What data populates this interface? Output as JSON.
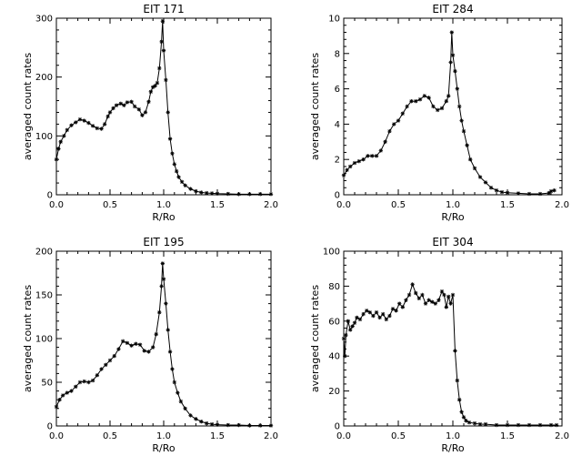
{
  "chart_data": [
    {
      "type": "line",
      "title": "EIT 171",
      "xlabel": "R/Ro",
      "ylabel": "averaged count rates",
      "xlim": [
        0,
        2
      ],
      "ylim": [
        0,
        300
      ],
      "xticks": [
        "0.0",
        "0.5",
        "1.0",
        "1.5",
        "2.0"
      ],
      "yticks": [
        "0",
        "100",
        "200",
        "300"
      ],
      "ytick_values": [
        0,
        100,
        200,
        300
      ],
      "marker": "asterisk",
      "x": [
        0.0,
        0.02,
        0.04,
        0.07,
        0.1,
        0.14,
        0.18,
        0.22,
        0.26,
        0.3,
        0.34,
        0.38,
        0.42,
        0.45,
        0.48,
        0.5,
        0.53,
        0.56,
        0.6,
        0.63,
        0.66,
        0.7,
        0.73,
        0.77,
        0.8,
        0.83,
        0.86,
        0.88,
        0.9,
        0.92,
        0.94,
        0.96,
        0.98,
        0.99,
        1.0,
        1.02,
        1.04,
        1.06,
        1.08,
        1.1,
        1.12,
        1.14,
        1.17,
        1.2,
        1.25,
        1.3,
        1.35,
        1.4,
        1.45,
        1.5,
        1.6,
        1.7,
        1.8,
        1.9,
        2.0
      ],
      "y": [
        60,
        78,
        90,
        100,
        110,
        118,
        123,
        128,
        126,
        122,
        117,
        113,
        112,
        120,
        133,
        140,
        147,
        152,
        155,
        152,
        157,
        158,
        150,
        145,
        135,
        140,
        158,
        175,
        183,
        185,
        190,
        215,
        260,
        295,
        245,
        195,
        140,
        95,
        70,
        52,
        40,
        30,
        22,
        16,
        10,
        6,
        4,
        3,
        2.5,
        2,
        1.5,
        1,
        1,
        1,
        1
      ]
    },
    {
      "type": "line",
      "title": "EIT 284",
      "xlabel": "R/Ro",
      "ylabel": "averaged count rates",
      "xlim": [
        0,
        2
      ],
      "ylim": [
        0,
        10
      ],
      "xticks": [
        "0.0",
        "0.5",
        "1.0",
        "1.5",
        "2.0"
      ],
      "yticks": [
        "0",
        "2",
        "4",
        "6",
        "8",
        "10"
      ],
      "ytick_values": [
        0,
        2,
        4,
        6,
        8,
        10
      ],
      "marker": "asterisk",
      "x": [
        0.0,
        0.03,
        0.06,
        0.1,
        0.14,
        0.18,
        0.22,
        0.26,
        0.3,
        0.34,
        0.38,
        0.42,
        0.46,
        0.5,
        0.54,
        0.58,
        0.62,
        0.66,
        0.7,
        0.74,
        0.78,
        0.82,
        0.86,
        0.9,
        0.94,
        0.96,
        0.98,
        0.99,
        1.0,
        1.02,
        1.04,
        1.06,
        1.08,
        1.1,
        1.13,
        1.16,
        1.2,
        1.25,
        1.3,
        1.35,
        1.4,
        1.45,
        1.5,
        1.6,
        1.7,
        1.8,
        1.88,
        1.9,
        1.93
      ],
      "y": [
        1.1,
        1.4,
        1.6,
        1.8,
        1.9,
        2.0,
        2.2,
        2.2,
        2.2,
        2.5,
        3.0,
        3.6,
        4.0,
        4.2,
        4.6,
        5.0,
        5.3,
        5.3,
        5.4,
        5.6,
        5.5,
        5.0,
        4.8,
        4.9,
        5.3,
        5.6,
        7.5,
        9.2,
        7.9,
        7.0,
        6.0,
        5.0,
        4.2,
        3.6,
        2.8,
        2.0,
        1.5,
        1.0,
        0.7,
        0.4,
        0.25,
        0.15,
        0.12,
        0.08,
        0.05,
        0.05,
        0.1,
        0.2,
        0.25
      ]
    },
    {
      "type": "line",
      "title": "EIT 195",
      "xlabel": "R/Ro",
      "ylabel": "averaged count rates",
      "xlim": [
        0,
        2
      ],
      "ylim": [
        0,
        200
      ],
      "xticks": [
        "0.0",
        "0.5",
        "1.0",
        "1.5",
        "2.0"
      ],
      "yticks": [
        "0",
        "50",
        "100",
        "150",
        "200"
      ],
      "ytick_values": [
        0,
        50,
        100,
        150,
        200
      ],
      "marker": "asterisk",
      "x": [
        0.0,
        0.03,
        0.06,
        0.1,
        0.14,
        0.18,
        0.22,
        0.26,
        0.3,
        0.34,
        0.38,
        0.42,
        0.46,
        0.5,
        0.54,
        0.58,
        0.62,
        0.66,
        0.7,
        0.74,
        0.78,
        0.82,
        0.86,
        0.9,
        0.93,
        0.96,
        0.98,
        0.99,
        1.0,
        1.02,
        1.04,
        1.06,
        1.08,
        1.1,
        1.13,
        1.16,
        1.2,
        1.25,
        1.3,
        1.35,
        1.4,
        1.45,
        1.5,
        1.6,
        1.7,
        1.8,
        1.9,
        2.0
      ],
      "y": [
        22,
        30,
        35,
        38,
        40,
        45,
        50,
        51,
        50,
        52,
        58,
        65,
        70,
        75,
        80,
        88,
        97,
        95,
        92,
        94,
        93,
        86,
        85,
        90,
        105,
        130,
        160,
        186,
        168,
        140,
        110,
        85,
        65,
        50,
        38,
        28,
        20,
        12,
        8,
        5,
        3,
        2,
        1.5,
        1,
        1,
        0.5,
        0.5,
        0.5
      ]
    },
    {
      "type": "line",
      "title": "EIT 304",
      "xlabel": "R/Ro",
      "ylabel": "averaged count rates",
      "xlim": [
        0,
        2
      ],
      "ylim": [
        0,
        100
      ],
      "xticks": [
        "0.0",
        "0.5",
        "1.0",
        "1.5",
        "2.0"
      ],
      "yticks": [
        "0",
        "20",
        "40",
        "60",
        "80",
        "100"
      ],
      "ytick_values": [
        0,
        20,
        40,
        60,
        80,
        100
      ],
      "marker": "asterisk",
      "x": [
        0.0,
        0.01,
        0.02,
        0.04,
        0.06,
        0.08,
        0.1,
        0.12,
        0.15,
        0.18,
        0.21,
        0.24,
        0.27,
        0.3,
        0.33,
        0.36,
        0.39,
        0.42,
        0.45,
        0.48,
        0.51,
        0.54,
        0.57,
        0.6,
        0.63,
        0.66,
        0.69,
        0.72,
        0.75,
        0.78,
        0.81,
        0.84,
        0.87,
        0.9,
        0.92,
        0.94,
        0.96,
        0.98,
        1.0,
        1.02,
        1.04,
        1.06,
        1.08,
        1.1,
        1.12,
        1.15,
        1.2,
        1.25,
        1.3,
        1.4,
        1.5,
        1.6,
        1.7,
        1.8,
        1.9,
        1.95
      ],
      "y": [
        50,
        40,
        52,
        60,
        55,
        57,
        59,
        62,
        61,
        64,
        66,
        65,
        63,
        65,
        62,
        64,
        61,
        63,
        67,
        66,
        70,
        68,
        72,
        75,
        81,
        76,
        73,
        75,
        70,
        72,
        71,
        70,
        72,
        77,
        75,
        68,
        74,
        70,
        75,
        43,
        26,
        15,
        8,
        5,
        3,
        2,
        1.5,
        1,
        1,
        0.5,
        0.5,
        0.5,
        0.5,
        0.5,
        0.5,
        0.5
      ]
    }
  ]
}
